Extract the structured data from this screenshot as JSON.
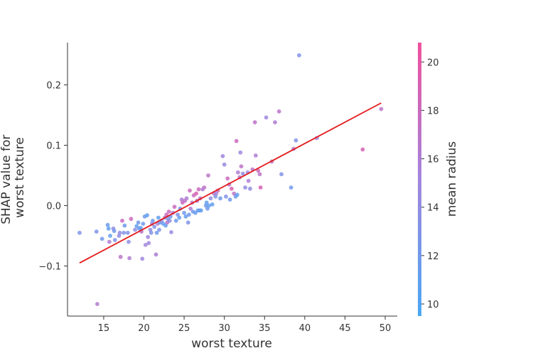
{
  "chart_data": {
    "type": "scatter",
    "title": "",
    "xlabel": "worst texture",
    "ylabel_lines": [
      "SHAP value for",
      "worst texture"
    ],
    "xlim": [
      10.5,
      51.5
    ],
    "ylim": [
      -0.183,
      0.27
    ],
    "xticks": [
      15,
      20,
      25,
      30,
      35,
      40,
      45,
      50
    ],
    "yticks": [
      -0.1,
      0.0,
      0.1,
      0.2
    ],
    "ytick_labels": [
      "−0.1",
      "0.0",
      "0.1",
      "0.2"
    ],
    "colorbar": {
      "label": "mean radius",
      "range": [
        9.5,
        20.8
      ],
      "ticks": [
        10,
        12,
        14,
        16,
        18,
        20
      ],
      "colors": [
        "#4aa8f5",
        "#a386de",
        "#f0509c"
      ]
    },
    "trend_line": {
      "color": "#e31a1c",
      "points": [
        [
          12.0,
          -0.095
        ],
        [
          49.5,
          0.17
        ]
      ]
    },
    "points": [
      [
        12.0,
        -0.045,
        13.0
      ],
      [
        14.1,
        -0.043,
        13.0
      ],
      [
        14.2,
        -0.163,
        16.5
      ],
      [
        14.8,
        -0.055,
        12.0
      ],
      [
        15.5,
        -0.032,
        11.5
      ],
      [
        15.6,
        -0.038,
        11.0
      ],
      [
        15.8,
        -0.05,
        11.0
      ],
      [
        15.7,
        -0.06,
        16.0
      ],
      [
        16.2,
        -0.038,
        14.0
      ],
      [
        16.3,
        -0.042,
        12.0
      ],
      [
        16.4,
        -0.057,
        13.0
      ],
      [
        16.9,
        -0.05,
        14.0
      ],
      [
        17.0,
        -0.045,
        14.0
      ],
      [
        17.1,
        -0.085,
        17.0
      ],
      [
        17.3,
        -0.025,
        18.0
      ],
      [
        17.5,
        -0.045,
        13.0
      ],
      [
        17.6,
        -0.033,
        12.0
      ],
      [
        18.0,
        -0.045,
        13.0
      ],
      [
        18.1,
        -0.06,
        14.0
      ],
      [
        18.2,
        -0.087,
        16.0
      ],
      [
        18.4,
        -0.022,
        18.0
      ],
      [
        18.9,
        -0.04,
        14.0
      ],
      [
        19.1,
        -0.034,
        11.0
      ],
      [
        19.3,
        -0.028,
        12.0
      ],
      [
        19.4,
        -0.038,
        12.0
      ],
      [
        19.6,
        -0.037,
        11.0
      ],
      [
        19.7,
        -0.043,
        17.0
      ],
      [
        19.8,
        -0.088,
        15.0
      ],
      [
        19.9,
        -0.03,
        12.0
      ],
      [
        20.1,
        -0.018,
        12.0
      ],
      [
        20.2,
        -0.065,
        15.0
      ],
      [
        20.4,
        -0.016,
        11.0
      ],
      [
        20.5,
        -0.052,
        15.0
      ],
      [
        20.6,
        -0.062,
        15.0
      ],
      [
        20.8,
        -0.04,
        14.0
      ],
      [
        20.9,
        -0.045,
        13.0
      ],
      [
        21.0,
        -0.03,
        15.0
      ],
      [
        21.1,
        -0.025,
        12.0
      ],
      [
        21.3,
        -0.035,
        13.0
      ],
      [
        21.5,
        -0.081,
        16.0
      ],
      [
        21.6,
        -0.045,
        12.0
      ],
      [
        21.7,
        -0.03,
        16.0
      ],
      [
        21.8,
        -0.02,
        11.0
      ],
      [
        21.9,
        -0.04,
        13.0
      ],
      [
        22.0,
        -0.028,
        12.0
      ],
      [
        22.2,
        -0.025,
        14.0
      ],
      [
        22.4,
        -0.03,
        11.0
      ],
      [
        22.6,
        -0.02,
        16.0
      ],
      [
        22.7,
        -0.033,
        11.0
      ],
      [
        22.8,
        -0.015,
        18.0
      ],
      [
        22.9,
        -0.028,
        17.0
      ],
      [
        23.0,
        -0.022,
        12.0
      ],
      [
        23.1,
        -0.01,
        18.0
      ],
      [
        23.2,
        -0.025,
        14.0
      ],
      [
        23.3,
        -0.018,
        12.0
      ],
      [
        23.4,
        -0.044,
        14.5
      ],
      [
        23.6,
        -0.012,
        16.0
      ],
      [
        23.8,
        -0.002,
        18.0
      ],
      [
        24.0,
        -0.025,
        12.0
      ],
      [
        24.2,
        -0.015,
        13.0
      ],
      [
        24.4,
        -0.02,
        11.5
      ],
      [
        24.5,
        -0.005,
        13.0
      ],
      [
        24.7,
        0.01,
        16.0
      ],
      [
        24.8,
        0.005,
        18.0
      ],
      [
        25.0,
        -0.012,
        12.0
      ],
      [
        25.1,
        0.008,
        17.0
      ],
      [
        25.2,
        -0.018,
        11.0
      ],
      [
        25.3,
        0.012,
        16.0
      ],
      [
        25.5,
        -0.028,
        13.0
      ],
      [
        25.6,
        -0.015,
        12.0
      ],
      [
        25.7,
        0.025,
        18.0
      ],
      [
        25.8,
        -0.005,
        16.0
      ],
      [
        26.0,
        0.005,
        17.0
      ],
      [
        26.1,
        -0.01,
        12.0
      ],
      [
        26.2,
        0.017,
        18.0
      ],
      [
        26.4,
        -0.012,
        11.5
      ],
      [
        26.5,
        0.02,
        19.0
      ],
      [
        26.6,
        0.008,
        17.0
      ],
      [
        26.7,
        -0.008,
        11.0
      ],
      [
        26.8,
        0.027,
        18.0
      ],
      [
        26.9,
        -0.008,
        12.0
      ],
      [
        27.0,
        0.012,
        17.0
      ],
      [
        27.1,
        -0.008,
        11.0
      ],
      [
        27.3,
        0.027,
        16.0
      ],
      [
        27.5,
        0.03,
        17.0
      ],
      [
        27.7,
        0.0,
        12.0
      ],
      [
        27.8,
        0.005,
        11.0
      ],
      [
        27.9,
        -0.005,
        12.0
      ],
      [
        28.0,
        0.05,
        17.0
      ],
      [
        28.1,
        0.0,
        11.0
      ],
      [
        28.3,
        0.012,
        14.0
      ],
      [
        28.5,
        0.002,
        11.0
      ],
      [
        28.7,
        0.02,
        17.0
      ],
      [
        28.9,
        0.015,
        13.0
      ],
      [
        29.0,
        0.02,
        15.0
      ],
      [
        29.2,
        0.025,
        18.0
      ],
      [
        29.5,
        0.012,
        12.0
      ],
      [
        29.8,
        0.082,
        15.0
      ],
      [
        30.0,
        0.068,
        14.5
      ],
      [
        30.2,
        0.015,
        13.0
      ],
      [
        30.4,
        0.045,
        18.0
      ],
      [
        30.6,
        0.035,
        17.0
      ],
      [
        30.7,
        0.01,
        12.0
      ],
      [
        30.9,
        0.028,
        19.0
      ],
      [
        31.2,
        0.02,
        17.0
      ],
      [
        31.4,
        0.015,
        12.0
      ],
      [
        31.5,
        0.107,
        18.0
      ],
      [
        31.6,
        0.018,
        11.0
      ],
      [
        31.7,
        0.055,
        16.0
      ],
      [
        31.9,
        0.047,
        17.0
      ],
      [
        32.0,
        0.088,
        15.0
      ],
      [
        32.1,
        0.065,
        17.0
      ],
      [
        32.3,
        0.053,
        14.0
      ],
      [
        32.6,
        0.03,
        14.0
      ],
      [
        32.9,
        0.055,
        15.0
      ],
      [
        33.0,
        0.041,
        16.0
      ],
      [
        33.2,
        0.028,
        14.0
      ],
      [
        33.5,
        0.06,
        17.0
      ],
      [
        33.8,
        0.138,
        17.0
      ],
      [
        33.9,
        0.083,
        16.0
      ],
      [
        34.2,
        0.058,
        18.0
      ],
      [
        34.4,
        0.052,
        17.0
      ],
      [
        34.5,
        0.03,
        19.0
      ],
      [
        35.2,
        0.146,
        15.0
      ],
      [
        35.9,
        0.073,
        17.0
      ],
      [
        36.3,
        0.138,
        16.0
      ],
      [
        36.8,
        0.156,
        17.0
      ],
      [
        37.1,
        0.052,
        13.0
      ],
      [
        38.3,
        0.03,
        12.0
      ],
      [
        38.6,
        0.094,
        16.0
      ],
      [
        38.9,
        0.108,
        13.0
      ],
      [
        39.3,
        0.249,
        13.0
      ],
      [
        41.5,
        0.112,
        15.0
      ],
      [
        47.2,
        0.093,
        19.0
      ],
      [
        49.5,
        0.16,
        17.0
      ]
    ]
  }
}
